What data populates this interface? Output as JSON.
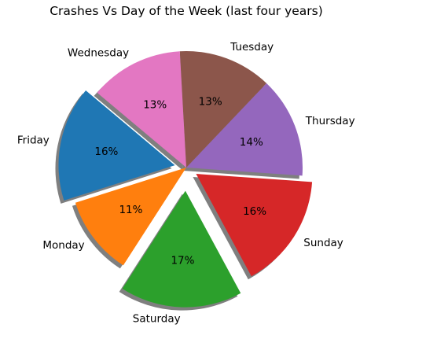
{
  "chart_data": {
    "type": "pie",
    "title": "Crashes Vs Day of the Week (last four years)",
    "slices": [
      {
        "label": "Friday",
        "value": 16,
        "pct_label": "16%",
        "color": "#1f77b4",
        "explode": 0.1
      },
      {
        "label": "Monday",
        "value": 11,
        "pct_label": "11%",
        "color": "#ff7f0e",
        "explode": 0.0
      },
      {
        "label": "Saturday",
        "value": 17,
        "pct_label": "17%",
        "color": "#2ca02c",
        "explode": 0.2
      },
      {
        "label": "Sunday",
        "value": 16,
        "pct_label": "16%",
        "color": "#d62728",
        "explode": 0.1
      },
      {
        "label": "Thursday",
        "value": 14,
        "pct_label": "14%",
        "color": "#9467bd",
        "explode": 0.0
      },
      {
        "label": "Tuesday",
        "value": 13,
        "pct_label": "13%",
        "color": "#8c564b",
        "explode": 0.0
      },
      {
        "label": "Wednesday",
        "value": 13,
        "pct_label": "13%",
        "color": "#e377c2",
        "explode": 0.0
      }
    ],
    "start_angle_deg": 140,
    "direction": "counterclockwise",
    "shadow": true
  }
}
